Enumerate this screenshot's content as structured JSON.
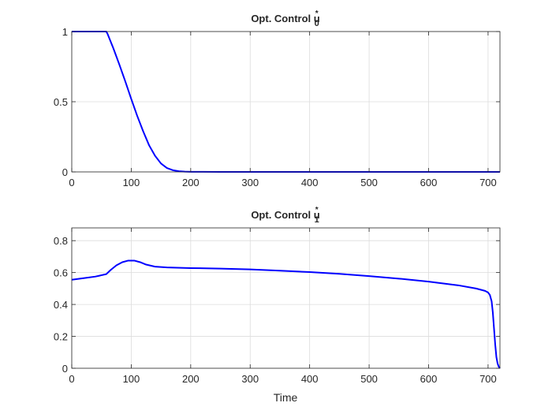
{
  "chart_data": [
    {
      "type": "line",
      "title_main": "Opt. Control u",
      "title_sup": "*",
      "title_sub": "0",
      "xlabel": "",
      "ylabel": "",
      "xlim": [
        0,
        720
      ],
      "ylim": [
        0,
        1
      ],
      "xticks": [
        0,
        100,
        200,
        300,
        400,
        500,
        600,
        700
      ],
      "yticks": [
        0,
        0.5,
        1
      ],
      "ytick_labels": [
        "0",
        "0.5",
        "1"
      ],
      "grid": true,
      "line_color": "#0000ff",
      "series": [
        {
          "x": [
            0,
            58,
            60,
            70,
            80,
            90,
            100,
            110,
            120,
            130,
            140,
            150,
            160,
            170,
            180,
            190,
            200,
            220,
            250,
            300,
            400,
            500,
            600,
            700,
            720
          ],
          "y": [
            1,
            1,
            0.985,
            0.88,
            0.765,
            0.645,
            0.52,
            0.4,
            0.29,
            0.19,
            0.115,
            0.06,
            0.028,
            0.012,
            0.005,
            0.002,
            0.001,
            0.0005,
            0.0003,
            0.0002,
            0.0002,
            0.0002,
            0.0002,
            0.0001,
            0
          ]
        }
      ]
    },
    {
      "type": "line",
      "title_main": "Opt. Control u",
      "title_sup": "*",
      "title_sub": "1",
      "xlabel": "Time",
      "ylabel": "",
      "xlim": [
        0,
        720
      ],
      "ylim": [
        0,
        0.88
      ],
      "xticks": [
        0,
        100,
        200,
        300,
        400,
        500,
        600,
        700
      ],
      "yticks": [
        0,
        0.2,
        0.4,
        0.6,
        0.8
      ],
      "ytick_labels": [
        "0",
        "0.2",
        "0.4",
        "0.6",
        "0.8"
      ],
      "grid": true,
      "line_color": "#0000ff",
      "series": [
        {
          "x": [
            0,
            20,
            40,
            58,
            65,
            75,
            85,
            95,
            105,
            115,
            125,
            140,
            160,
            200,
            250,
            300,
            350,
            400,
            450,
            500,
            550,
            600,
            650,
            680,
            695,
            700,
            703,
            706,
            708,
            710,
            712,
            714,
            716,
            718,
            720
          ],
          "y": [
            0.555,
            0.565,
            0.575,
            0.59,
            0.615,
            0.645,
            0.665,
            0.675,
            0.675,
            0.665,
            0.65,
            0.637,
            0.632,
            0.628,
            0.625,
            0.62,
            0.612,
            0.603,
            0.592,
            0.578,
            0.562,
            0.543,
            0.52,
            0.5,
            0.485,
            0.475,
            0.46,
            0.42,
            0.35,
            0.25,
            0.15,
            0.07,
            0.03,
            0.01,
            0
          ]
        }
      ]
    }
  ]
}
